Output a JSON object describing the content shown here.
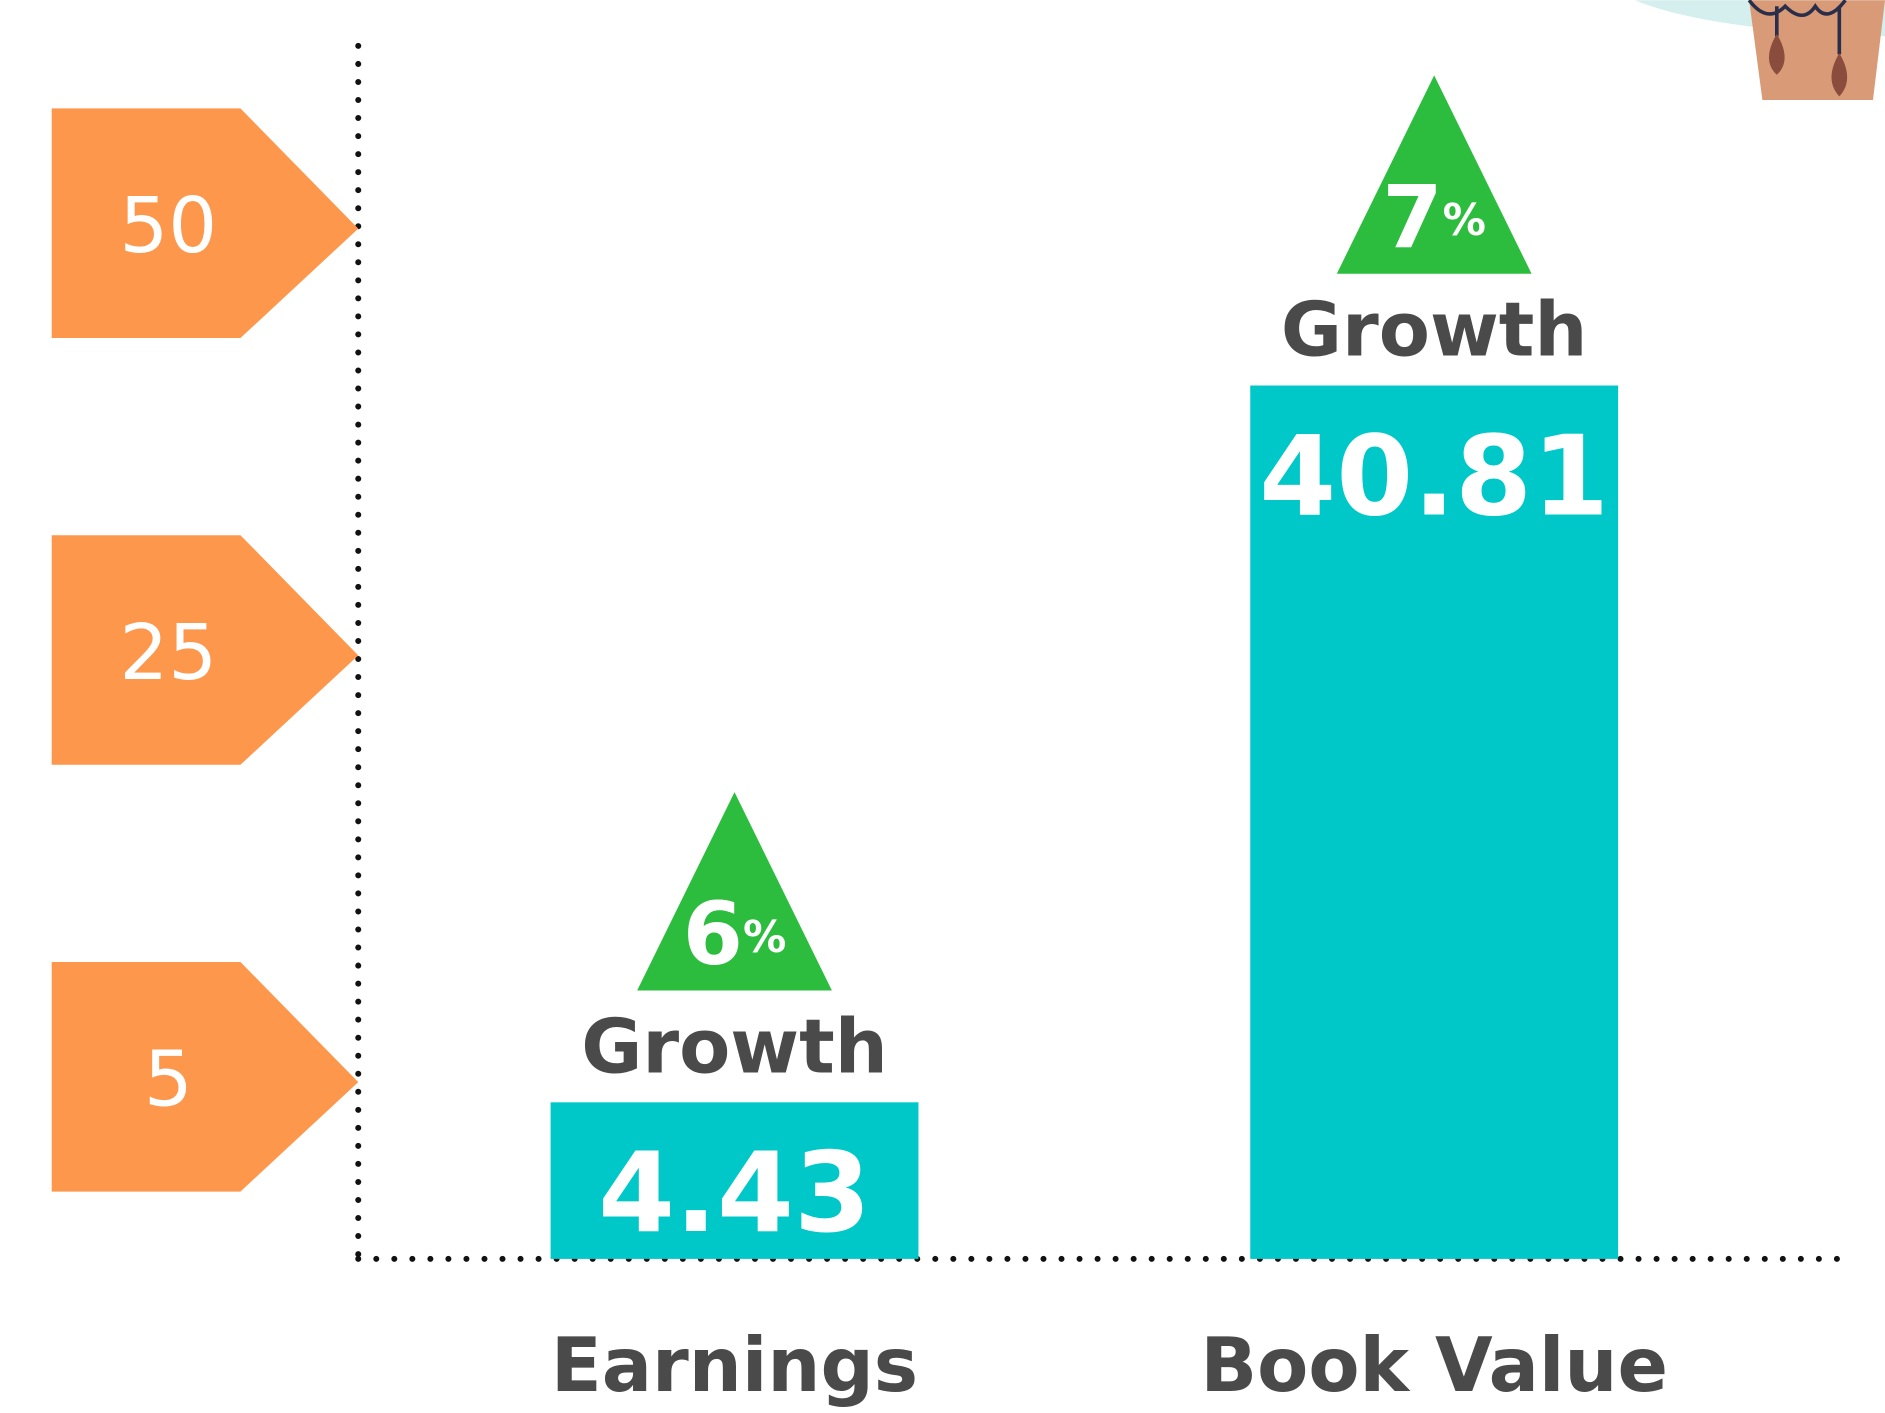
{
  "chart_data": {
    "type": "bar",
    "categories": [
      "Earnings",
      "Book Value"
    ],
    "values": [
      4.43,
      40.81
    ],
    "color": "#00c8c8",
    "ylim": [
      0,
      50
    ],
    "yticks": [
      5,
      25,
      50
    ],
    "tick_color": "#fd974c",
    "growth": [
      {
        "value": 6,
        "label": "6%",
        "text": "Growth"
      },
      {
        "value": 7,
        "label": "7%",
        "text": "Growth"
      }
    ],
    "growth_color": "#2dbd3e",
    "grid": false
  }
}
